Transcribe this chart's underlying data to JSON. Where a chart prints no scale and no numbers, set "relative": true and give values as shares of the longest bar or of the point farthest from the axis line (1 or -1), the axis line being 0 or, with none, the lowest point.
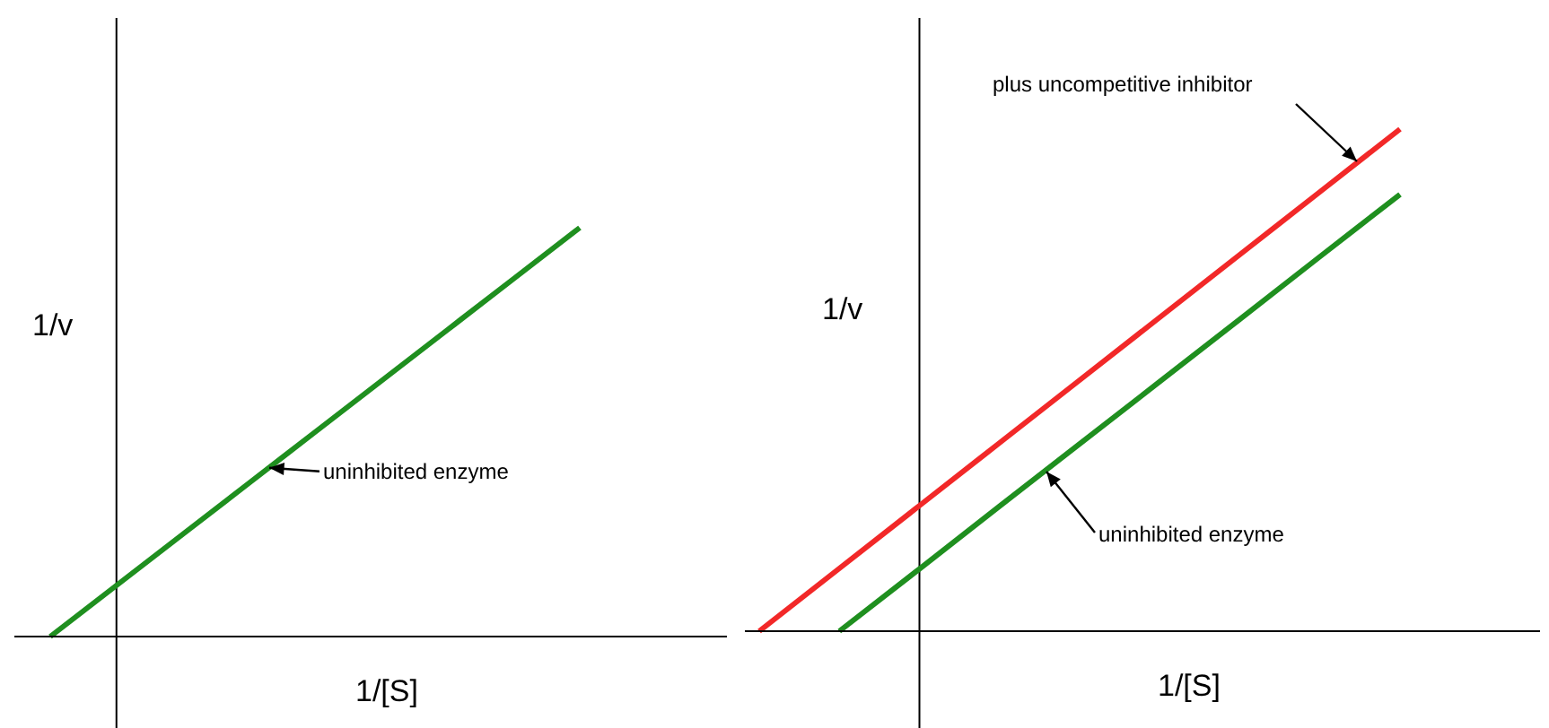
{
  "chart_data": [
    {
      "type": "line",
      "relative": true,
      "xlabel": "1/[S]",
      "ylabel": "1/v",
      "categories": [
        null,
        null,
        null,
        null,
        null,
        null,
        null,
        null,
        null
      ],
      "series": [
        {
          "color": "#1f8f1f",
          "values": [
            0,
            0.125,
            0.25,
            0.375,
            0.5,
            0.625,
            0.75,
            0.875,
            1
          ]
        }
      ],
      "annotations": [
        "uninhibited enzyme"
      ]
    },
    {
      "type": "line",
      "relative": true,
      "xlabel": "1/[S]",
      "ylabel": "1/v",
      "categories": [
        null,
        null,
        null,
        null,
        null,
        null,
        null,
        null,
        null
      ],
      "series": [
        {
          "color": "#f22828",
          "values": [
            0,
            0.125,
            0.25,
            0.375,
            0.5,
            0.625,
            0.75,
            0.875,
            1
          ]
        },
        {
          "color": "#1f8f1f",
          "values": [
            null,
            0,
            0.124,
            0.249,
            0.373,
            0.497,
            0.621,
            0.746,
            0.87
          ]
        }
      ],
      "annotations": [
        "plus uncompetitive inhibitor",
        "uninhibited enzyme"
      ]
    }
  ]
}
